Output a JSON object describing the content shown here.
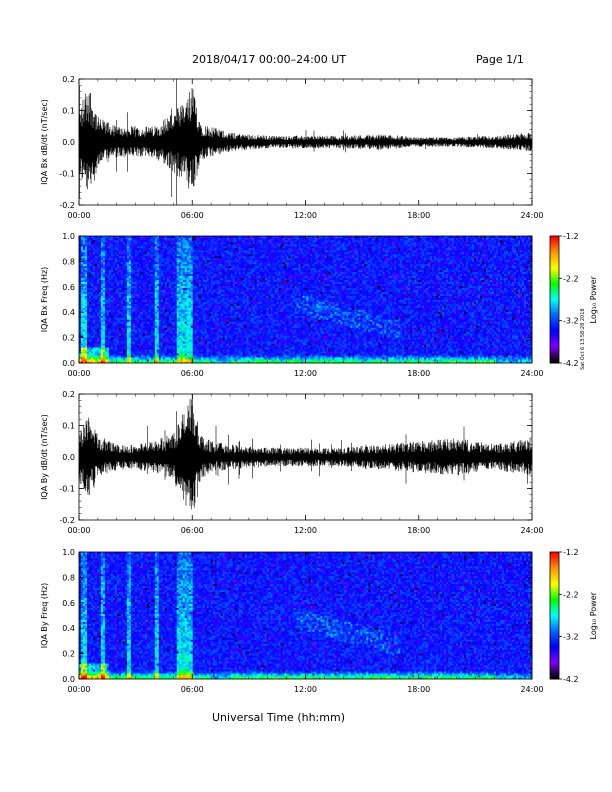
{
  "header": {
    "date_range": "2018/04/17  00:00–24:00 UT",
    "page": "Page 1/1"
  },
  "xlabel": "Universal Time (hh:mm)",
  "credit": "Sat Oct 6 13:58:28 2018",
  "colorbar": {
    "label": "Log₁₀ Power",
    "ticks": [
      "-1.2",
      "-2.2",
      "-3.2",
      "-4.2"
    ],
    "colors": [
      "#ff0000",
      "#ff9900",
      "#ffff00",
      "#00ff00",
      "#00ffff",
      "#0066ff",
      "#0000ff",
      "#7f00ff",
      "#000000"
    ]
  },
  "chart_data": [
    {
      "type": "line",
      "ylabel": "IQA Bx dB/dt (nT/sec)",
      "ylim": [
        -0.2,
        0.2
      ],
      "yticks": [
        "0.2",
        "0.1",
        "0.0",
        "-0.1",
        "-0.2"
      ],
      "xticks": [
        "00:00",
        "06:00",
        "12:00",
        "18:00",
        "24:00"
      ],
      "envelope_hours": [
        0,
        0.5,
        1,
        2,
        3,
        4,
        5,
        5.5,
        6,
        6.5,
        7,
        8,
        10,
        12,
        14,
        16,
        18,
        20,
        22,
        24
      ],
      "envelope_amplitude": [
        0.1,
        0.2,
        0.08,
        0.05,
        0.05,
        0.05,
        0.1,
        0.12,
        0.18,
        0.06,
        0.05,
        0.03,
        0.02,
        0.02,
        0.02,
        0.025,
        0.015,
        0.015,
        0.02,
        0.03
      ]
    },
    {
      "type": "heatmap",
      "ylabel": "IQA Bx Freq (Hz)",
      "ylim": [
        0.0,
        1.0
      ],
      "yticks": [
        "1.0",
        "0.8",
        "0.6",
        "0.4",
        "0.2",
        "0.0"
      ],
      "xticks": [
        "00:00",
        "06:00",
        "12:00",
        "18:00",
        "24:00"
      ],
      "zlim": [
        -4.2,
        -1.2
      ]
    },
    {
      "type": "line",
      "ylabel": "IQA By dB/dt (nT/sec)",
      "ylim": [
        -0.2,
        0.2
      ],
      "yticks": [
        "0.2",
        "0.1",
        "0.0",
        "-0.1",
        "-0.2"
      ],
      "xticks": [
        "00:00",
        "06:00",
        "12:00",
        "18:00",
        "24:00"
      ],
      "envelope_hours": [
        0,
        0.5,
        1,
        2,
        3,
        4,
        5,
        5.5,
        6,
        6.5,
        7,
        8,
        10,
        12,
        14,
        16,
        18,
        20,
        22,
        24
      ],
      "envelope_amplitude": [
        0.08,
        0.14,
        0.07,
        0.04,
        0.04,
        0.05,
        0.08,
        0.14,
        0.2,
        0.07,
        0.05,
        0.04,
        0.03,
        0.03,
        0.03,
        0.04,
        0.05,
        0.06,
        0.04,
        0.06
      ]
    },
    {
      "type": "heatmap",
      "ylabel": "IQA By Freq (Hz)",
      "ylim": [
        0.0,
        1.0
      ],
      "yticks": [
        "1.0",
        "0.8",
        "0.6",
        "0.4",
        "0.2",
        "0.0"
      ],
      "xticks": [
        "00:00",
        "06:00",
        "12:00",
        "18:00",
        "24:00"
      ],
      "zlim": [
        -4.2,
        -1.2
      ]
    }
  ]
}
